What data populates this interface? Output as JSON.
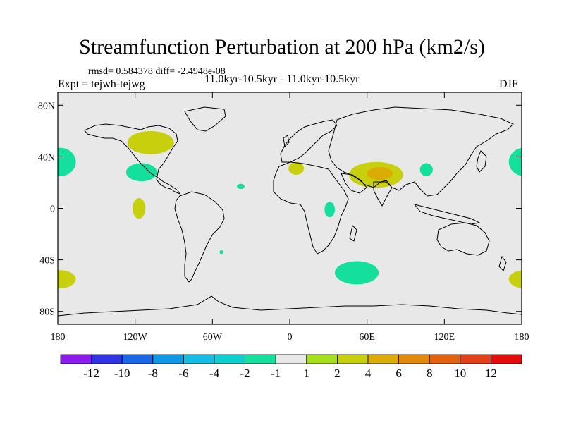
{
  "title": "Streamfunction Perturbation at 200 hPa (km2/s)",
  "stats_line": "rmsd= 0.584378  diff= -2.4948e-08",
  "left_label": "Expt = tejwh-tejwg",
  "center_label": "11.0kyr-10.5kyr - 11.0kyr-10.5kyr",
  "right_label": "DJF",
  "lat_labels": [
    "80N",
    "40N",
    "0",
    "40S",
    "80S"
  ],
  "lon_labels": [
    "180",
    "120W",
    "60W",
    "0",
    "60E",
    "120E",
    "180"
  ],
  "colorbar": {
    "labels": [
      "-12",
      "-10",
      "-8",
      "-6",
      "-4",
      "-2",
      "-1",
      "1",
      "2",
      "4",
      "6",
      "8",
      "10",
      "12"
    ],
    "colors": [
      "#8c1aec",
      "#3333e6",
      "#1a66e6",
      "#0d99e6",
      "#14bde6",
      "#0dcfcf",
      "#14df9c",
      "#e8e8e8",
      "#a6e01a",
      "#c8cf0d",
      "#dcac06",
      "#e48a0a",
      "#e3620e",
      "#e3401a",
      "#e30d0d"
    ]
  },
  "anomalies": [
    {
      "name": "north-america-positive",
      "lon": -108,
      "lat": 51,
      "rx": 18,
      "ry": 9,
      "value": 2
    },
    {
      "name": "east-pacific-negative",
      "lon": -115,
      "lat": 28,
      "rx": 12,
      "ry": 7,
      "value": -2
    },
    {
      "name": "east-pacific-equatorial-positive",
      "lon": -117,
      "lat": 0,
      "rx": 5,
      "ry": 8,
      "value": 2
    },
    {
      "name": "atlantic-small-negative",
      "lon": -38,
      "lat": 17,
      "rx": 3,
      "ry": 2,
      "value": -2
    },
    {
      "name": "south-atlantic-tiny-negative",
      "lon": -53,
      "lat": -34,
      "rx": 1.5,
      "ry": 1.5,
      "value": -2
    },
    {
      "name": "mediterranean-positive",
      "lon": 5,
      "lat": 31,
      "rx": 6,
      "ry": 5,
      "value": 2
    },
    {
      "name": "south-asia-positive",
      "lon": 67,
      "lat": 26,
      "rx": 21,
      "ry": 10,
      "value": 2
    },
    {
      "name": "south-asia-core",
      "lon": 70,
      "lat": 27,
      "rx": 10,
      "ry": 5,
      "value": 4
    },
    {
      "name": "east-africa-negative",
      "lon": 31,
      "lat": -1,
      "rx": 4,
      "ry": 6,
      "value": -2
    },
    {
      "name": "southern-ocean-negative",
      "lon": 52,
      "lat": -50,
      "rx": 17,
      "ry": 9,
      "value": -2
    },
    {
      "name": "china-negative",
      "lon": 106,
      "lat": 30,
      "rx": 5,
      "ry": 5,
      "value": -2
    },
    {
      "name": "west-pacific-negative",
      "lon": 182,
      "lat": 36,
      "rx": 12,
      "ry": 11,
      "value": -2
    },
    {
      "name": "south-pacific-positive",
      "lon": 182,
      "lat": -55,
      "rx": 12,
      "ry": 7,
      "value": 2
    }
  ]
}
